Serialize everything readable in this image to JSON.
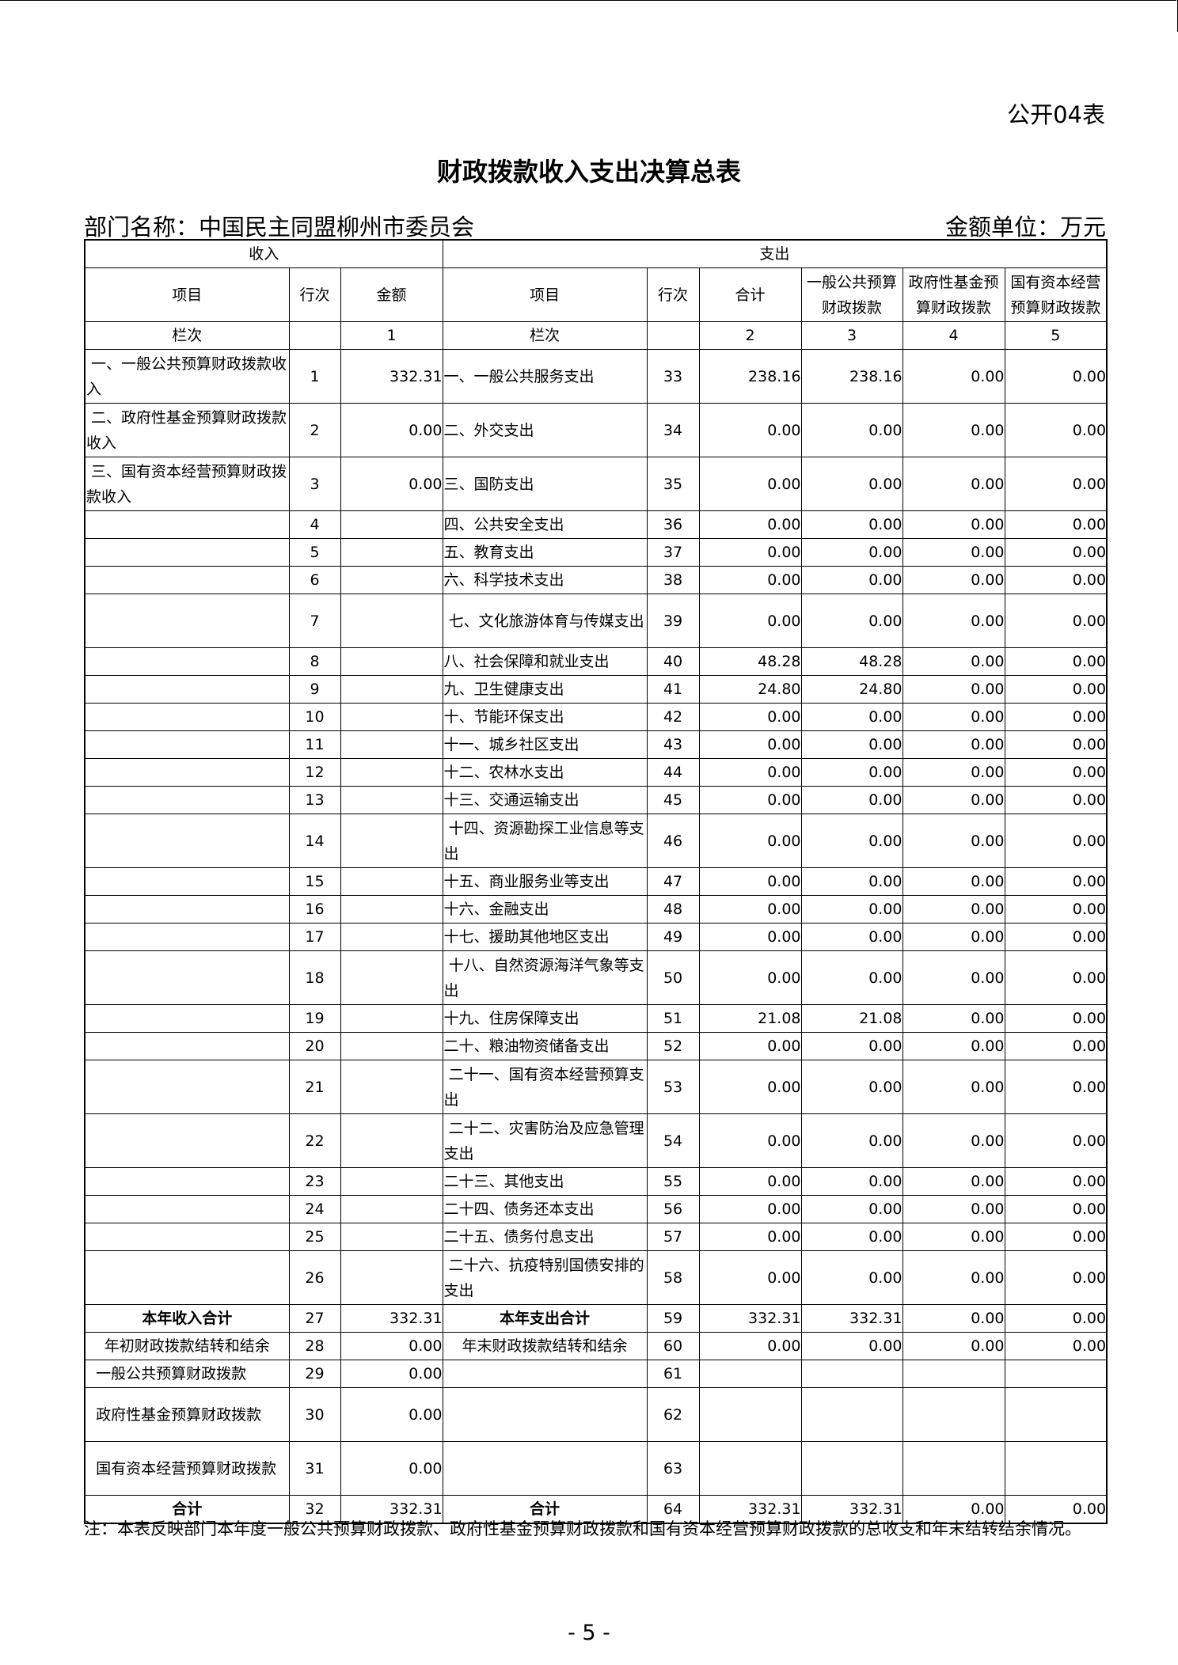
{
  "form_no": "公开04表",
  "title": "财政拨款收入支出决算总表",
  "dept": "部门名称：中国民主同盟柳州市委员会",
  "unit": "金额单位：万元",
  "header": {
    "income": "收入",
    "expense": "支出",
    "cols": [
      "项目",
      "行次",
      "金额",
      "项目",
      "行次",
      "合计",
      "一般公共预算财政拨款",
      "政府性基金预算财政拨款",
      "国有资本经营预算财政拨款"
    ],
    "lanci": [
      "栏次",
      "",
      "1",
      "栏次",
      "",
      "2",
      "3",
      "4",
      "5"
    ]
  },
  "rows": [
    [
      " 一、一般公共预算财政拨款收入",
      "1",
      "332.31",
      "一、一般公共服务支出",
      "33",
      "238.16",
      "238.16",
      "0.00",
      "0.00"
    ],
    [
      " 二、政府性基金预算财政拨款收入",
      "2",
      "0.00",
      "二、外交支出",
      "34",
      "0.00",
      "0.00",
      "0.00",
      "0.00"
    ],
    [
      " 三、国有资本经营预算财政拨款收入",
      "3",
      "0.00",
      "三、国防支出",
      "35",
      "0.00",
      "0.00",
      "0.00",
      "0.00"
    ],
    [
      "",
      "4",
      "",
      "四、公共安全支出",
      "36",
      "0.00",
      "0.00",
      "0.00",
      "0.00"
    ],
    [
      "",
      "5",
      "",
      "五、教育支出",
      "37",
      "0.00",
      "0.00",
      "0.00",
      "0.00"
    ],
    [
      "",
      "6",
      "",
      "六、科学技术支出",
      "38",
      "0.00",
      "0.00",
      "0.00",
      "0.00"
    ],
    [
      "",
      "7",
      "",
      " 七、文化旅游体育与传媒支出",
      "39",
      "0.00",
      "0.00",
      "0.00",
      "0.00"
    ],
    [
      "",
      "8",
      "",
      "八、社会保障和就业支出",
      "40",
      "48.28",
      "48.28",
      "0.00",
      "0.00"
    ],
    [
      "",
      "9",
      "",
      "九、卫生健康支出",
      "41",
      "24.80",
      "24.80",
      "0.00",
      "0.00"
    ],
    [
      "",
      "10",
      "",
      "十、节能环保支出",
      "42",
      "0.00",
      "0.00",
      "0.00",
      "0.00"
    ],
    [
      "",
      "11",
      "",
      "十一、城乡社区支出",
      "43",
      "0.00",
      "0.00",
      "0.00",
      "0.00"
    ],
    [
      "",
      "12",
      "",
      "十二、农林水支出",
      "44",
      "0.00",
      "0.00",
      "0.00",
      "0.00"
    ],
    [
      "",
      "13",
      "",
      "十三、交通运输支出",
      "45",
      "0.00",
      "0.00",
      "0.00",
      "0.00"
    ],
    [
      "",
      "14",
      "",
      " 十四、资源勘探工业信息等支出",
      "46",
      "0.00",
      "0.00",
      "0.00",
      "0.00"
    ],
    [
      "",
      "15",
      "",
      "十五、商业服务业等支出",
      "47",
      "0.00",
      "0.00",
      "0.00",
      "0.00"
    ],
    [
      "",
      "16",
      "",
      "十六、金融支出",
      "48",
      "0.00",
      "0.00",
      "0.00",
      "0.00"
    ],
    [
      "",
      "17",
      "",
      "十七、援助其他地区支出",
      "49",
      "0.00",
      "0.00",
      "0.00",
      "0.00"
    ],
    [
      "",
      "18",
      "",
      " 十八、自然资源海洋气象等支出",
      "50",
      "0.00",
      "0.00",
      "0.00",
      "0.00"
    ],
    [
      "",
      "19",
      "",
      "十九、住房保障支出",
      "51",
      "21.08",
      "21.08",
      "0.00",
      "0.00"
    ],
    [
      "",
      "20",
      "",
      "二十、粮油物资储备支出",
      "52",
      "0.00",
      "0.00",
      "0.00",
      "0.00"
    ],
    [
      "",
      "21",
      "",
      " 二十一、国有资本经营预算支出",
      "53",
      "0.00",
      "0.00",
      "0.00",
      "0.00"
    ],
    [
      "",
      "22",
      "",
      " 二十二、灾害防治及应急管理支出",
      "54",
      "0.00",
      "0.00",
      "0.00",
      "0.00"
    ],
    [
      "",
      "23",
      "",
      "二十三、其他支出",
      "55",
      "0.00",
      "0.00",
      "0.00",
      "0.00"
    ],
    [
      "",
      "24",
      "",
      "二十四、债务还本支出",
      "56",
      "0.00",
      "0.00",
      "0.00",
      "0.00"
    ],
    [
      "",
      "25",
      "",
      "二十五、债务付息支出",
      "57",
      "0.00",
      "0.00",
      "0.00",
      "0.00"
    ],
    [
      "",
      "26",
      "",
      " 二十六、抗疫特别国债安排的支出",
      "58",
      "0.00",
      "0.00",
      "0.00",
      "0.00"
    ],
    [
      "本年收入合计",
      "27",
      "332.31",
      "本年支出合计",
      "59",
      "332.31",
      "332.31",
      "0.00",
      "0.00"
    ],
    [
      "年初财政拨款结转和结余",
      "28",
      "0.00",
      "年末财政拨款结转和结余",
      "60",
      "0.00",
      "0.00",
      "0.00",
      "0.00"
    ],
    [
      "  一般公共预算财政拨款",
      "29",
      "0.00",
      "",
      "61",
      "",
      "",
      "",
      ""
    ],
    [
      "  政府性基金预算财政拨款",
      "30",
      "0.00",
      "",
      "62",
      "",
      "",
      "",
      ""
    ],
    [
      "  国有资本经营预算财政拨款",
      "31",
      "0.00",
      "",
      "63",
      "",
      "",
      "",
      ""
    ],
    [
      "合计",
      "32",
      "332.31",
      "合计",
      "64",
      "332.31",
      "332.31",
      "0.00",
      "0.00"
    ]
  ],
  "tall_rows": [
    1,
    2,
    3,
    7,
    14,
    18,
    21,
    22,
    26,
    30,
    31
  ],
  "bold_rows": [
    27,
    32
  ],
  "note": "注：本表反映部门本年度一般公共预算财政拨款、政府性基金预算财政拨款和国有资本经营预算财政拨款的总收支和年末结转结余情况。",
  "page_no": "- 5 -"
}
